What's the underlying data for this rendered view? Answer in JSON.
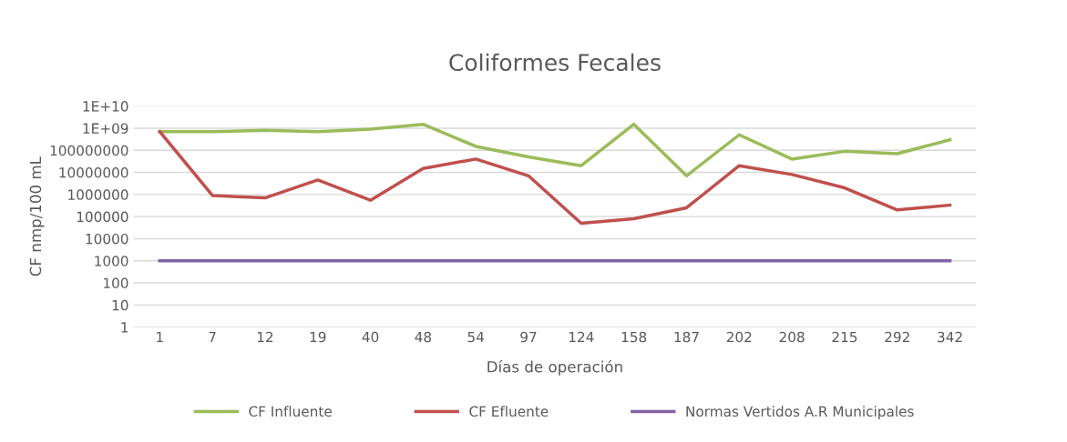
{
  "chart_data": {
    "type": "line",
    "title": "Coliformes Fecales",
    "xlabel": "Días de operación",
    "ylabel": "CF nmp/100 mL",
    "categories": [
      "1",
      "7",
      "12",
      "19",
      "40",
      "48",
      "54",
      "97",
      "124",
      "158",
      "187",
      "202",
      "208",
      "215",
      "292",
      "342"
    ],
    "series": [
      {
        "name": "CF Influente",
        "color": "#9bbb59",
        "values": [
          700000000,
          700000000,
          800000000,
          700000000,
          900000000,
          1500000000,
          150000000,
          50000000,
          20000000,
          1500000000,
          7000000,
          500000000,
          40000000,
          90000000,
          70000000,
          300000000
        ]
      },
      {
        "name": "CF Efluente",
        "color": "#c0504d",
        "values": [
          700000000,
          900000,
          700000,
          4500000,
          550000,
          15000000,
          40000000,
          7000000,
          50000,
          80000,
          250000,
          20000000,
          8000000,
          2000000,
          200000,
          330000
        ]
      },
      {
        "name": "Normas Vertidos A.R Municipales",
        "color": "#8064a2",
        "values": [
          1000,
          1000,
          1000,
          1000,
          1000,
          1000,
          1000,
          1000,
          1000,
          1000,
          1000,
          1000,
          1000,
          1000,
          1000,
          1000
        ]
      }
    ],
    "log": "y",
    "ylim": [
      1,
      10000000000
    ],
    "yticks": [
      1,
      10,
      100,
      1000,
      10000,
      100000,
      1000000,
      10000000,
      100000000,
      {
        "value": 1000000000,
        "label": "1E+09"
      },
      {
        "value": 10000000000,
        "label": "1E+10"
      }
    ],
    "grid": "y",
    "legend": "bottom",
    "marker": "none",
    "line_style": "solid"
  }
}
